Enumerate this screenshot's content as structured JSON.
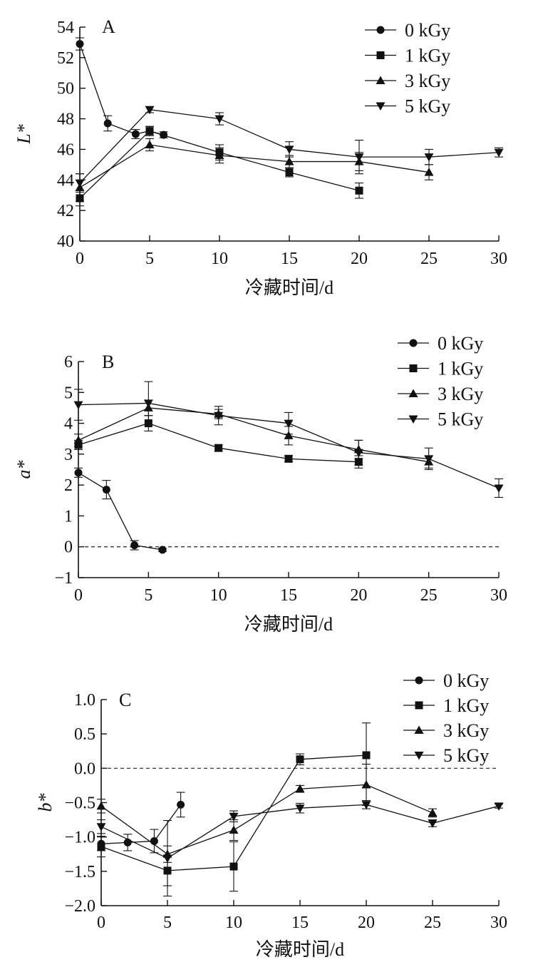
{
  "chart_data": [
    {
      "type": "line",
      "panel_label": "A",
      "ylabel": "L*",
      "xlabel": "冷藏时间/d",
      "xlim": [
        0,
        30
      ],
      "ylim": [
        40,
        54
      ],
      "xticks": [
        "0",
        "5",
        "10",
        "15",
        "20",
        "25",
        "30"
      ],
      "yticks": [
        "40",
        "42",
        "44",
        "46",
        "48",
        "50",
        "52",
        "54"
      ],
      "reference_line": null,
      "legend_placement": "top-right",
      "series": [
        {
          "name": "0 kGy",
          "marker": "circle",
          "x": [
            0,
            2,
            4,
            5,
            6
          ],
          "y": [
            52.9,
            47.7,
            47.0,
            47.2,
            46.95
          ],
          "err": [
            0.4,
            0.5,
            0.3,
            0.3,
            0.2
          ]
        },
        {
          "name": "1 kGy",
          "marker": "square",
          "x": [
            0,
            5,
            10,
            15,
            20
          ],
          "y": [
            42.8,
            47.2,
            45.8,
            44.5,
            43.3
          ],
          "err": [
            0.5,
            0.3,
            0.5,
            0.3,
            0.5
          ]
        },
        {
          "name": "3 kGy",
          "marker": "triangle-up",
          "x": [
            0,
            5,
            10,
            15,
            20,
            25
          ],
          "y": [
            43.5,
            46.3,
            45.6,
            45.2,
            45.2,
            44.5
          ],
          "err": [
            0.9,
            0.4,
            0.5,
            0.4,
            0.6,
            0.5
          ]
        },
        {
          "name": "5 kGy",
          "marker": "triangle-down",
          "x": [
            0,
            5,
            10,
            15,
            20,
            25,
            30
          ],
          "y": [
            43.8,
            48.6,
            48.0,
            46.0,
            45.5,
            45.5,
            45.8
          ],
          "err": [
            0.6,
            0.2,
            0.4,
            0.5,
            1.1,
            0.5,
            0.3
          ]
        }
      ]
    },
    {
      "type": "line",
      "panel_label": "B",
      "ylabel": "a*",
      "xlabel": "冷藏时间/d",
      "xlim": [
        0,
        30
      ],
      "ylim": [
        -1,
        6
      ],
      "xticks": [
        "0",
        "5",
        "10",
        "15",
        "20",
        "25",
        "30"
      ],
      "yticks": [
        "−1",
        "0",
        "1",
        "2",
        "3",
        "4",
        "5",
        "6"
      ],
      "reference_line": 0,
      "legend_placement": "top-right",
      "series": [
        {
          "name": "0 kGy",
          "marker": "circle",
          "x": [
            0,
            2,
            4,
            6
          ],
          "y": [
            2.4,
            1.85,
            0.05,
            -0.1
          ],
          "err": [
            0.15,
            0.3,
            0.15,
            0.05
          ]
        },
        {
          "name": "1 kGy",
          "marker": "square",
          "x": [
            0,
            5,
            10,
            15,
            20
          ],
          "y": [
            3.3,
            4.0,
            3.2,
            2.85,
            2.75
          ],
          "err": [
            0.15,
            0.25,
            0.1,
            0.1,
            0.2
          ]
        },
        {
          "name": "3 kGy",
          "marker": "triangle-up",
          "x": [
            0,
            5,
            10,
            15,
            20,
            25
          ],
          "y": [
            3.45,
            4.5,
            4.3,
            3.6,
            3.15,
            2.75
          ],
          "err": [
            0.2,
            0.25,
            0.15,
            0.3,
            0.3,
            0.2
          ]
        },
        {
          "name": "5 kGy",
          "marker": "triangle-down",
          "x": [
            0,
            5,
            10,
            15,
            20,
            25,
            30
          ],
          "y": [
            4.6,
            4.65,
            4.25,
            4.0,
            3.05,
            2.85,
            1.9
          ],
          "err": [
            0.5,
            0.7,
            0.3,
            0.35,
            0.4,
            0.35,
            0.3
          ]
        }
      ]
    },
    {
      "type": "line",
      "panel_label": "C",
      "ylabel": "b*",
      "xlabel": "冷藏时间/d",
      "xlim": [
        0,
        30
      ],
      "ylim": [
        -2.0,
        1.0
      ],
      "xticks": [
        "0",
        "5",
        "10",
        "15",
        "20",
        "25",
        "30"
      ],
      "yticks": [
        "−2.0",
        "−1.5",
        "−1.0",
        "−0.5",
        "0.0",
        "0.5",
        "1.0"
      ],
      "reference_line": 0,
      "legend_placement": "top-right",
      "series": [
        {
          "name": "0 kGy",
          "marker": "circle",
          "x": [
            0,
            2,
            4,
            6
          ],
          "y": [
            -1.1,
            -1.08,
            -1.06,
            -0.53
          ],
          "err": [
            0.1,
            0.12,
            0.17,
            0.18
          ]
        },
        {
          "name": "1 kGy",
          "marker": "square",
          "x": [
            0,
            5,
            10,
            15,
            20
          ],
          "y": [
            -1.14,
            -1.49,
            -1.43,
            0.13,
            0.19
          ],
          "err": [
            0.15,
            0.22,
            0.36,
            0.08,
            0.47
          ]
        },
        {
          "name": "3 kGy",
          "marker": "triangle-up",
          "x": [
            0,
            5,
            10,
            15,
            20,
            25
          ],
          "y": [
            -0.55,
            -1.25,
            -0.9,
            -0.3,
            -0.24,
            -0.65
          ],
          "err": [
            0.1,
            0.12,
            0.15,
            0.05,
            0.3,
            0.06
          ]
        },
        {
          "name": "5 kGy",
          "marker": "triangle-down",
          "x": [
            0,
            5,
            10,
            15,
            20,
            25,
            30
          ],
          "y": [
            -0.85,
            -1.31,
            -0.7,
            -0.58,
            -0.53,
            -0.8,
            -0.55
          ],
          "err": [
            0.1,
            0.55,
            0.08,
            0.07,
            0.06,
            0.05,
            0.03
          ]
        }
      ]
    }
  ]
}
